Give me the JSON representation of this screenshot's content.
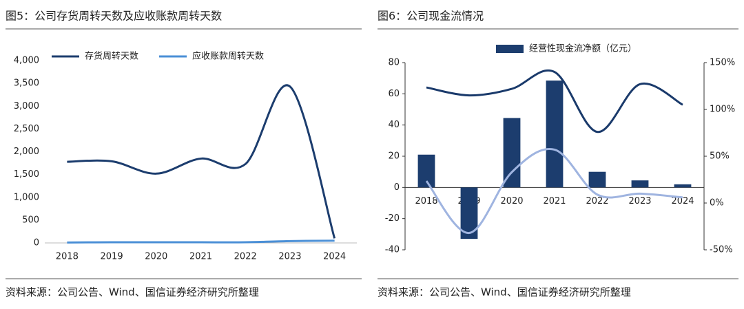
{
  "chart_data": [
    {
      "type": "line",
      "title": "图5：公司存货周转天数及应收账款周转天数",
      "source": "资料来源：公司公告、Wind、国信证券经济研究所整理",
      "categories": [
        "2018",
        "2019",
        "2020",
        "2021",
        "2022",
        "2023",
        "2024"
      ],
      "series": [
        {
          "name": "存货周转天数",
          "color": "#1c3d6e",
          "values": [
            1780,
            1790,
            1520,
            1850,
            1730,
            3430,
            100
          ]
        },
        {
          "name": "应收账款周转天数",
          "color": "#4a8fd6",
          "values": [
            10,
            15,
            15,
            15,
            15,
            40,
            50
          ]
        }
      ],
      "ylim": [
        0,
        4000
      ],
      "yticks": [
        {
          "value": 4000,
          "label": "4,000"
        },
        {
          "value": 3500,
          "label": "3,500"
        },
        {
          "value": 3000,
          "label": "3,000"
        },
        {
          "value": 2500,
          "label": "2,500"
        },
        {
          "value": 2000,
          "label": "2,000"
        },
        {
          "value": 1500,
          "label": "1,500"
        },
        {
          "value": 1000,
          "label": "1,000"
        },
        500,
        0
      ]
    },
    {
      "type": "bar",
      "title": "图6：公司现金流情况",
      "source": "资料来源：公司公告、Wind、国信证券经济研究所整理",
      "categories": [
        "2018",
        "2019",
        "2020",
        "2021",
        "2022",
        "2023",
        "2024"
      ],
      "series": [
        {
          "name": "经营性现金流净额（亿元）",
          "type": "bar",
          "color": "#1c3d6e",
          "values": [
            21,
            -33,
            44.5,
            68.5,
            10,
            4.5,
            2
          ]
        },
        {
          "type": "line",
          "axis": "y2",
          "color": "#1a3a6b",
          "values": [
            123.5,
            115,
            122,
            140,
            76,
            127,
            105
          ]
        },
        {
          "type": "line",
          "axis": "y2",
          "color": "#9fb4e0",
          "values": [
            23.5,
            -32,
            33,
            57,
            9,
            10,
            6
          ]
        }
      ],
      "ylim": [
        -40,
        80
      ],
      "yticks": [
        80,
        60,
        40,
        20,
        0,
        -20,
        -40
      ],
      "y2lim": [
        -50,
        150
      ],
      "y2ticks": [
        {
          "value": 150,
          "label": "150%"
        },
        {
          "value": 100,
          "label": "100%"
        },
        {
          "value": 50,
          "label": "50%"
        },
        {
          "value": 0,
          "label": "0%"
        },
        {
          "value": -50,
          "label": "-50%"
        }
      ]
    }
  ]
}
